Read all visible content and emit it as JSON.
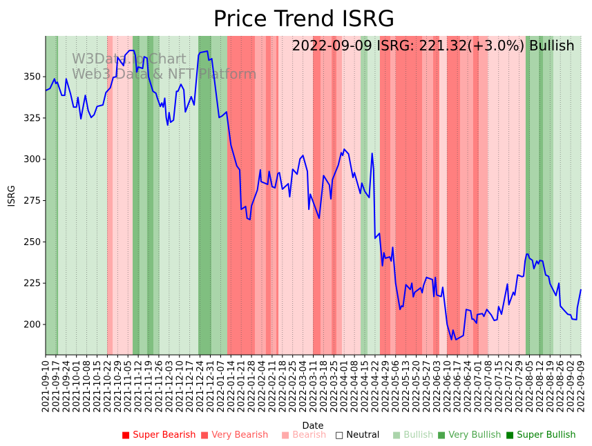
{
  "chart_data": {
    "type": "line",
    "title": "Price Trend ISRG",
    "xlabel": "Date",
    "ylabel": "ISRG",
    "ylim": [
      181.6,
      374.7
    ],
    "xlim_days": [
      0,
      364
    ],
    "start_date": "2021-09-10",
    "annotation": "2022-09-09 ISRG: 221.32(+3.0%) Bullish",
    "watermark": [
      "W3Data.io Chart",
      "Web3 Data & NFT Platform"
    ],
    "yticks": [
      200,
      225,
      250,
      275,
      300,
      325,
      350
    ],
    "xticks": [
      "2021-09-10",
      "2021-09-17",
      "2021-09-24",
      "2021-10-01",
      "2021-10-08",
      "2021-10-15",
      "2021-10-22",
      "2021-10-29",
      "2021-11-05",
      "2021-11-12",
      "2021-11-19",
      "2021-11-26",
      "2021-12-03",
      "2021-12-10",
      "2021-12-17",
      "2021-12-24",
      "2021-12-31",
      "2022-01-07",
      "2022-01-14",
      "2022-01-21",
      "2022-01-28",
      "2022-02-04",
      "2022-02-11",
      "2022-02-18",
      "2022-02-25",
      "2022-03-04",
      "2022-03-11",
      "2022-03-18",
      "2022-03-25",
      "2022-04-01",
      "2022-04-08",
      "2022-04-15",
      "2022-04-22",
      "2022-04-29",
      "2022-05-06",
      "2022-05-13",
      "2022-05-20",
      "2022-05-27",
      "2022-06-03",
      "2022-06-10",
      "2022-06-17",
      "2022-06-24",
      "2022-07-01",
      "2022-07-08",
      "2022-07-15",
      "2022-07-22",
      "2022-07-29",
      "2022-08-05",
      "2022-08-12",
      "2022-08-19",
      "2022-08-26",
      "2022-09-02",
      "2022-09-09"
    ],
    "series": [
      {
        "name": "ISRG",
        "color": "#0000ff",
        "points": [
          [
            0,
            341.6
          ],
          [
            3,
            342.9
          ],
          [
            6,
            348.7
          ],
          [
            7,
            345.8
          ],
          [
            8,
            346.7
          ],
          [
            11,
            338.7
          ],
          [
            13,
            338.7
          ],
          [
            14,
            348.7
          ],
          [
            17,
            339.5
          ],
          [
            19,
            331.6
          ],
          [
            21,
            331.6
          ],
          [
            22,
            337.5
          ],
          [
            24,
            324.5
          ],
          [
            27,
            338.7
          ],
          [
            29,
            329.5
          ],
          [
            31,
            325.3
          ],
          [
            33,
            327
          ],
          [
            35,
            332
          ],
          [
            39,
            332.9
          ],
          [
            41,
            340.4
          ],
          [
            44,
            343.3
          ],
          [
            46,
            349.6
          ],
          [
            48,
            350
          ],
          [
            49,
            361.7
          ],
          [
            53,
            356.7
          ],
          [
            54,
            363
          ],
          [
            57,
            365.9
          ],
          [
            60,
            365.9
          ],
          [
            61,
            363
          ],
          [
            62,
            352.9
          ],
          [
            63,
            355.9
          ],
          [
            66,
            355
          ],
          [
            67,
            362.1
          ],
          [
            69,
            361.3
          ],
          [
            70,
            350
          ],
          [
            73,
            341.2
          ],
          [
            75,
            340
          ],
          [
            76,
            337
          ],
          [
            78,
            332
          ],
          [
            79,
            334.1
          ],
          [
            80,
            331.6
          ],
          [
            81,
            337
          ],
          [
            82,
            325.3
          ],
          [
            83,
            320.7
          ],
          [
            84,
            328.3
          ],
          [
            85,
            322.4
          ],
          [
            87,
            323.7
          ],
          [
            89,
            341.2
          ],
          [
            90,
            341.2
          ],
          [
            92,
            345.4
          ],
          [
            94,
            342
          ],
          [
            95,
            328.7
          ],
          [
            99,
            337.9
          ],
          [
            101,
            332.9
          ],
          [
            104,
            363
          ],
          [
            105,
            364.6
          ],
          [
            110,
            365.5
          ],
          [
            111,
            360
          ],
          [
            113,
            360.9
          ],
          [
            118,
            325.3
          ],
          [
            120,
            326.2
          ],
          [
            123,
            328.7
          ],
          [
            126,
            308.6
          ],
          [
            130,
            296
          ],
          [
            132,
            293.6
          ],
          [
            133,
            269.7
          ],
          [
            136,
            271.4
          ],
          [
            137,
            264.3
          ],
          [
            139,
            263.5
          ],
          [
            140,
            271.8
          ],
          [
            144,
            281.4
          ],
          [
            146,
            293.6
          ],
          [
            146.5,
            286.5
          ],
          [
            151,
            284.8
          ],
          [
            152,
            292.7
          ],
          [
            154,
            283.5
          ],
          [
            156,
            282.7
          ],
          [
            158,
            291.5
          ],
          [
            159,
            291.9
          ],
          [
            161,
            281.9
          ],
          [
            165,
            285.2
          ],
          [
            166,
            277.3
          ],
          [
            168,
            294
          ],
          [
            171,
            291
          ],
          [
            173,
            300.2
          ],
          [
            175,
            302.3
          ],
          [
            178,
            292.7
          ],
          [
            179,
            269.7
          ],
          [
            180,
            278.9
          ],
          [
            186,
            264.3
          ],
          [
            188,
            281
          ],
          [
            189,
            290.2
          ],
          [
            193,
            284.4
          ],
          [
            194,
            276
          ],
          [
            195,
            287.7
          ],
          [
            199,
            296.5
          ],
          [
            201,
            304
          ],
          [
            202,
            302.3
          ],
          [
            203,
            306.1
          ],
          [
            206,
            303.2
          ],
          [
            209,
            289
          ],
          [
            210,
            291.9
          ],
          [
            214,
            279.3
          ],
          [
            215,
            285.6
          ],
          [
            217,
            280.6
          ],
          [
            220,
            276.8
          ],
          [
            222,
            303.6
          ],
          [
            223,
            294
          ],
          [
            224,
            252.2
          ],
          [
            227,
            255.1
          ],
          [
            229,
            235.5
          ],
          [
            230,
            243.4
          ],
          [
            231,
            240.1
          ],
          [
            234,
            240.9
          ],
          [
            235,
            238.4
          ],
          [
            236,
            246.7
          ],
          [
            238,
            225
          ],
          [
            241,
            209.1
          ],
          [
            242,
            211.2
          ],
          [
            243,
            210.8
          ],
          [
            245,
            224.1
          ],
          [
            248,
            221.2
          ],
          [
            249,
            225
          ],
          [
            250,
            216.7
          ],
          [
            251,
            219.5
          ],
          [
            255,
            222.2
          ],
          [
            256,
            219.2
          ],
          [
            257,
            223.7
          ],
          [
            259,
            228.5
          ],
          [
            263,
            227.2
          ],
          [
            264,
            216.9
          ],
          [
            265,
            228.5
          ],
          [
            266,
            217.8
          ],
          [
            269,
            216.9
          ],
          [
            270,
            222.5
          ],
          [
            273,
            200
          ],
          [
            276,
            190.8
          ],
          [
            277,
            196.6
          ],
          [
            279,
            190.8
          ],
          [
            284,
            193.3
          ],
          [
            286,
            209.1
          ],
          [
            289,
            208.3
          ],
          [
            290,
            203.2
          ],
          [
            291,
            203.2
          ],
          [
            293,
            200.8
          ],
          [
            293.5,
            206
          ],
          [
            297,
            206.6
          ],
          [
            298,
            204.9
          ],
          [
            300,
            209.1
          ],
          [
            303,
            205.8
          ],
          [
            305,
            202.4
          ],
          [
            307,
            202.9
          ],
          [
            308,
            210.8
          ],
          [
            310,
            206.2
          ],
          [
            314,
            224.5
          ],
          [
            315,
            212
          ],
          [
            318,
            219.5
          ],
          [
            319,
            217.8
          ],
          [
            321,
            230
          ],
          [
            324,
            228.9
          ],
          [
            325,
            229.3
          ],
          [
            326,
            238.4
          ],
          [
            327,
            242.6
          ],
          [
            328,
            242.6
          ],
          [
            329,
            240.1
          ],
          [
            331,
            238.8
          ],
          [
            332,
            233.8
          ],
          [
            334,
            238.4
          ],
          [
            335,
            236.7
          ],
          [
            336,
            238.8
          ],
          [
            338,
            238.4
          ],
          [
            340,
            230
          ],
          [
            342,
            229.1
          ],
          [
            343,
            224.6
          ],
          [
            347,
            217.5
          ],
          [
            349,
            225
          ],
          [
            350,
            211.2
          ],
          [
            352,
            209.1
          ],
          [
            355,
            206.2
          ],
          [
            357,
            205.8
          ],
          [
            358,
            203.3
          ],
          [
            361,
            202.9
          ],
          [
            361.5,
            210
          ],
          [
            364,
            221.32
          ]
        ]
      }
    ],
    "regime_bands": [
      [
        0,
        "very_bullish"
      ],
      [
        7.5,
        "super_bullish"
      ],
      [
        8.5,
        "bullish"
      ],
      [
        41.8,
        "very_bearish"
      ],
      [
        45.6,
        "bearish"
      ],
      [
        59.2,
        "super_bullish"
      ],
      [
        63.9,
        "very_bullish"
      ],
      [
        69,
        "super_bullish"
      ],
      [
        73.3,
        "very_bullish"
      ],
      [
        77.5,
        "bullish"
      ],
      [
        103.8,
        "super_bullish"
      ],
      [
        112.7,
        "very_bullish"
      ],
      [
        123.5,
        "super_bearish"
      ],
      [
        142.3,
        "very_bearish"
      ],
      [
        149.8,
        "super_bearish"
      ],
      [
        153.1,
        "very_bearish"
      ],
      [
        156.9,
        "super_bearish"
      ],
      [
        158.3,
        "bearish"
      ],
      [
        181.8,
        "super_bearish"
      ],
      [
        186.9,
        "very_bearish"
      ],
      [
        194.5,
        "super_bearish"
      ],
      [
        197.7,
        "very_bearish"
      ],
      [
        201.5,
        "bearish"
      ],
      [
        214.2,
        "very_bullish"
      ],
      [
        218.9,
        "bullish"
      ],
      [
        227.3,
        "super_bearish"
      ],
      [
        234.4,
        "very_bearish"
      ],
      [
        238.1,
        "super_bearish"
      ],
      [
        256,
        "very_bearish"
      ],
      [
        263.5,
        "super_bearish"
      ],
      [
        267.7,
        "bearish"
      ],
      [
        272.9,
        "super_bearish"
      ],
      [
        281.8,
        "very_bearish"
      ],
      [
        290.7,
        "super_bearish"
      ],
      [
        294.5,
        "very_bearish"
      ],
      [
        300.6,
        "bearish"
      ],
      [
        326.4,
        "super_bullish"
      ],
      [
        329.3,
        "very_bullish"
      ],
      [
        335.4,
        "super_bullish"
      ],
      [
        338.2,
        "very_bullish"
      ],
      [
        345.2,
        "bullish"
      ]
    ],
    "band_colors": {
      "super_bearish": "#ff7f7f",
      "very_bearish": "#ffaaaa",
      "bearish": "#ffd4d4",
      "neutral": "#ffffff",
      "bullish": "#d4ead4",
      "very_bullish": "#aad5aa",
      "super_bullish": "#80bf80"
    },
    "legend": [
      {
        "label": "Super Bearish",
        "color": "#ff0000",
        "marker": "■"
      },
      {
        "label": "Very Bearish",
        "color": "#ff5555",
        "marker": "■"
      },
      {
        "label": "Bearish",
        "color": "#ffaaaa",
        "marker": "■"
      },
      {
        "label": "Neutral",
        "color": "#000000",
        "marker": "□"
      },
      {
        "label": "Bullish",
        "color": "#aad4aa",
        "marker": "■"
      },
      {
        "label": "Very Bullish",
        "color": "#4ca64c",
        "marker": "■"
      },
      {
        "label": "Super Bullish",
        "color": "#008000",
        "marker": "■"
      }
    ],
    "legend_placement": "bottom-right"
  }
}
